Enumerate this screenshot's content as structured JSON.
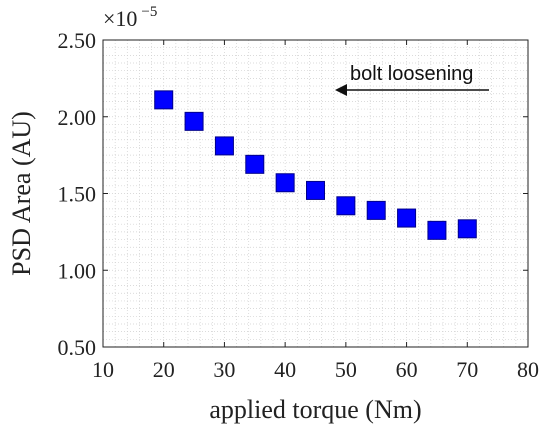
{
  "chart_data": {
    "type": "scatter",
    "title": "",
    "xlabel": "applied torque (Nm)",
    "ylabel": "PSD Area (AU)",
    "xlim": [
      10,
      80
    ],
    "ylim": [
      0.5,
      2.5
    ],
    "x_ticks": [
      10,
      20,
      30,
      40,
      50,
      60,
      70,
      80
    ],
    "y_ticks": [
      0.5,
      1.0,
      1.5,
      2.0,
      2.5
    ],
    "x_tick_labels": [
      "10",
      "20",
      "30",
      "40",
      "50",
      "60",
      "70",
      "80"
    ],
    "y_tick_labels": [
      "0.50",
      "1.00",
      "1.50",
      "2.00",
      "2.50"
    ],
    "y_multiplier": {
      "base": "×10",
      "exponent": "−5"
    },
    "grid": true,
    "marker": "square",
    "marker_color": "#0000ff",
    "series": [
      {
        "x": [
          20,
          25,
          30,
          35,
          40,
          45,
          50,
          55,
          60,
          65,
          70
        ],
        "y": [
          2.11,
          1.97,
          1.81,
          1.69,
          1.57,
          1.52,
          1.42,
          1.39,
          1.34,
          1.26,
          1.27
        ]
      }
    ],
    "annotation": {
      "text": "bolt loosening",
      "direction": "left"
    }
  }
}
